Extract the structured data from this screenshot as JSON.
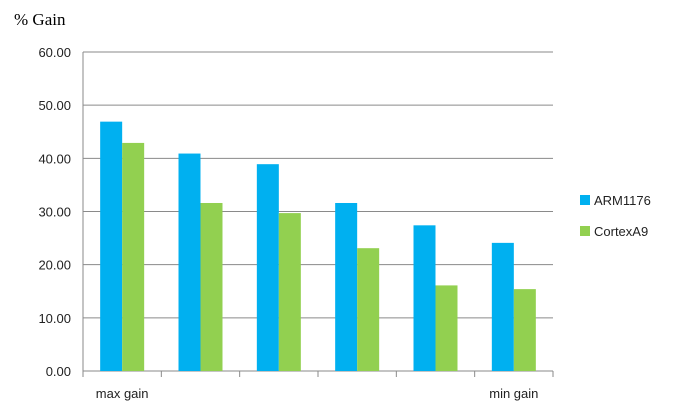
{
  "chart_data": {
    "type": "bar",
    "ylabel": "% Gain",
    "categories": [
      "max gain",
      "",
      "",
      "",
      "",
      "min gain"
    ],
    "series": [
      {
        "name": "ARM1176",
        "values": [
          46.9,
          40.9,
          38.9,
          31.6,
          27.4,
          24.1
        ],
        "color": "#00b0f0"
      },
      {
        "name": "CortexA9",
        "values": [
          42.9,
          31.6,
          29.7,
          23.1,
          16.1,
          15.4
        ],
        "color": "#92d050"
      }
    ],
    "ylim": [
      0,
      60
    ],
    "yticks": [
      "0.00",
      "10.00",
      "20.00",
      "30.00",
      "40.00",
      "50.00",
      "60.00"
    ],
    "grid": true,
    "legend": "right"
  }
}
